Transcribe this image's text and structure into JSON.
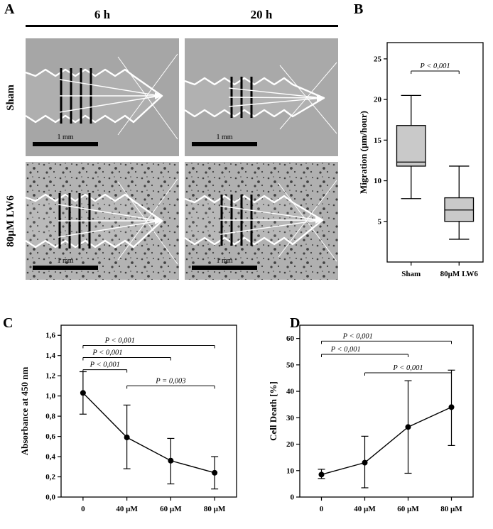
{
  "figure": {
    "panels": {
      "a": "A",
      "b": "B",
      "c": "C",
      "d": "D"
    },
    "panel_a": {
      "col_headers": [
        "6 h",
        "20 h"
      ],
      "row_labels": [
        "Sham",
        "80µM LW6"
      ],
      "scale_bar": "1 mm"
    }
  },
  "chart_data": [
    {
      "id": "migration_boxplot",
      "panel": "B",
      "type": "box",
      "title": "",
      "ylabel": "Migration (µm/hour)",
      "ylim": [
        0,
        27
      ],
      "yticks": [
        5,
        10,
        15,
        20,
        25
      ],
      "categories": [
        "Sham",
        "80µM LW6"
      ],
      "boxes": [
        {
          "category": "Sham",
          "whisker_low": 7.8,
          "q1": 11.8,
          "median": 12.3,
          "q3": 16.8,
          "whisker_high": 20.5
        },
        {
          "category": "80µM LW6",
          "whisker_low": 2.8,
          "q1": 5.0,
          "median": 6.4,
          "q3": 7.9,
          "whisker_high": 11.8
        }
      ],
      "box_fill": "#c9c9c9",
      "grid": false,
      "annotations": [
        {
          "label": "P < 0,001",
          "from": 0,
          "to": 1,
          "y": 23.5
        }
      ]
    },
    {
      "id": "absorbance_line",
      "panel": "C",
      "type": "line",
      "title": "",
      "ylabel": "Absorbance at 450 nm",
      "xlabel": "",
      "ylim": [
        0,
        1.7
      ],
      "yticks": [
        0,
        0.2,
        0.4,
        0.6,
        0.8,
        1.0,
        1.2,
        1.4,
        1.6
      ],
      "ytick_labels": [
        "0,0",
        "0,2",
        "0,4",
        "0,6",
        "0,8",
        "1,0",
        "1,2",
        "1,4",
        "1,6"
      ],
      "categories": [
        "0",
        "40 µM",
        "60 µM",
        "80 µM"
      ],
      "values": [
        1.03,
        0.59,
        0.36,
        0.24
      ],
      "err_low": [
        0.82,
        0.28,
        0.13,
        0.08
      ],
      "err_high": [
        1.24,
        0.91,
        0.58,
        0.4
      ],
      "grid": false,
      "annotations": [
        {
          "label": "P < 0,001",
          "from": 0,
          "to": 3,
          "y": 1.5
        },
        {
          "label": "P < 0,001",
          "from": 0,
          "to": 2,
          "y": 1.38
        },
        {
          "label": "P < 0,001",
          "from": 0,
          "to": 1,
          "y": 1.26
        },
        {
          "label": "P = 0,003",
          "from": 1,
          "to": 3,
          "y": 1.1
        }
      ]
    },
    {
      "id": "cell_death_line",
      "panel": "D",
      "type": "line",
      "title": "",
      "ylabel": "Cell Death  [%]",
      "xlabel": "",
      "ylim": [
        0,
        65
      ],
      "yticks": [
        0,
        10,
        20,
        30,
        40,
        50,
        60
      ],
      "categories": [
        "0",
        "40 µM",
        "60 µM",
        "80 µM"
      ],
      "values": [
        8.5,
        13,
        26.5,
        34
      ],
      "err_low": [
        7,
        3.5,
        9,
        19.5
      ],
      "err_high": [
        10.5,
        23,
        44,
        48
      ],
      "grid": false,
      "annotations": [
        {
          "label": "P < 0,001",
          "from": 0,
          "to": 3,
          "y": 59
        },
        {
          "label": "P < 0,001",
          "from": 0,
          "to": 2,
          "y": 54
        },
        {
          "label": "P < 0,001",
          "from": 1,
          "to": 3,
          "y": 47
        }
      ]
    }
  ]
}
